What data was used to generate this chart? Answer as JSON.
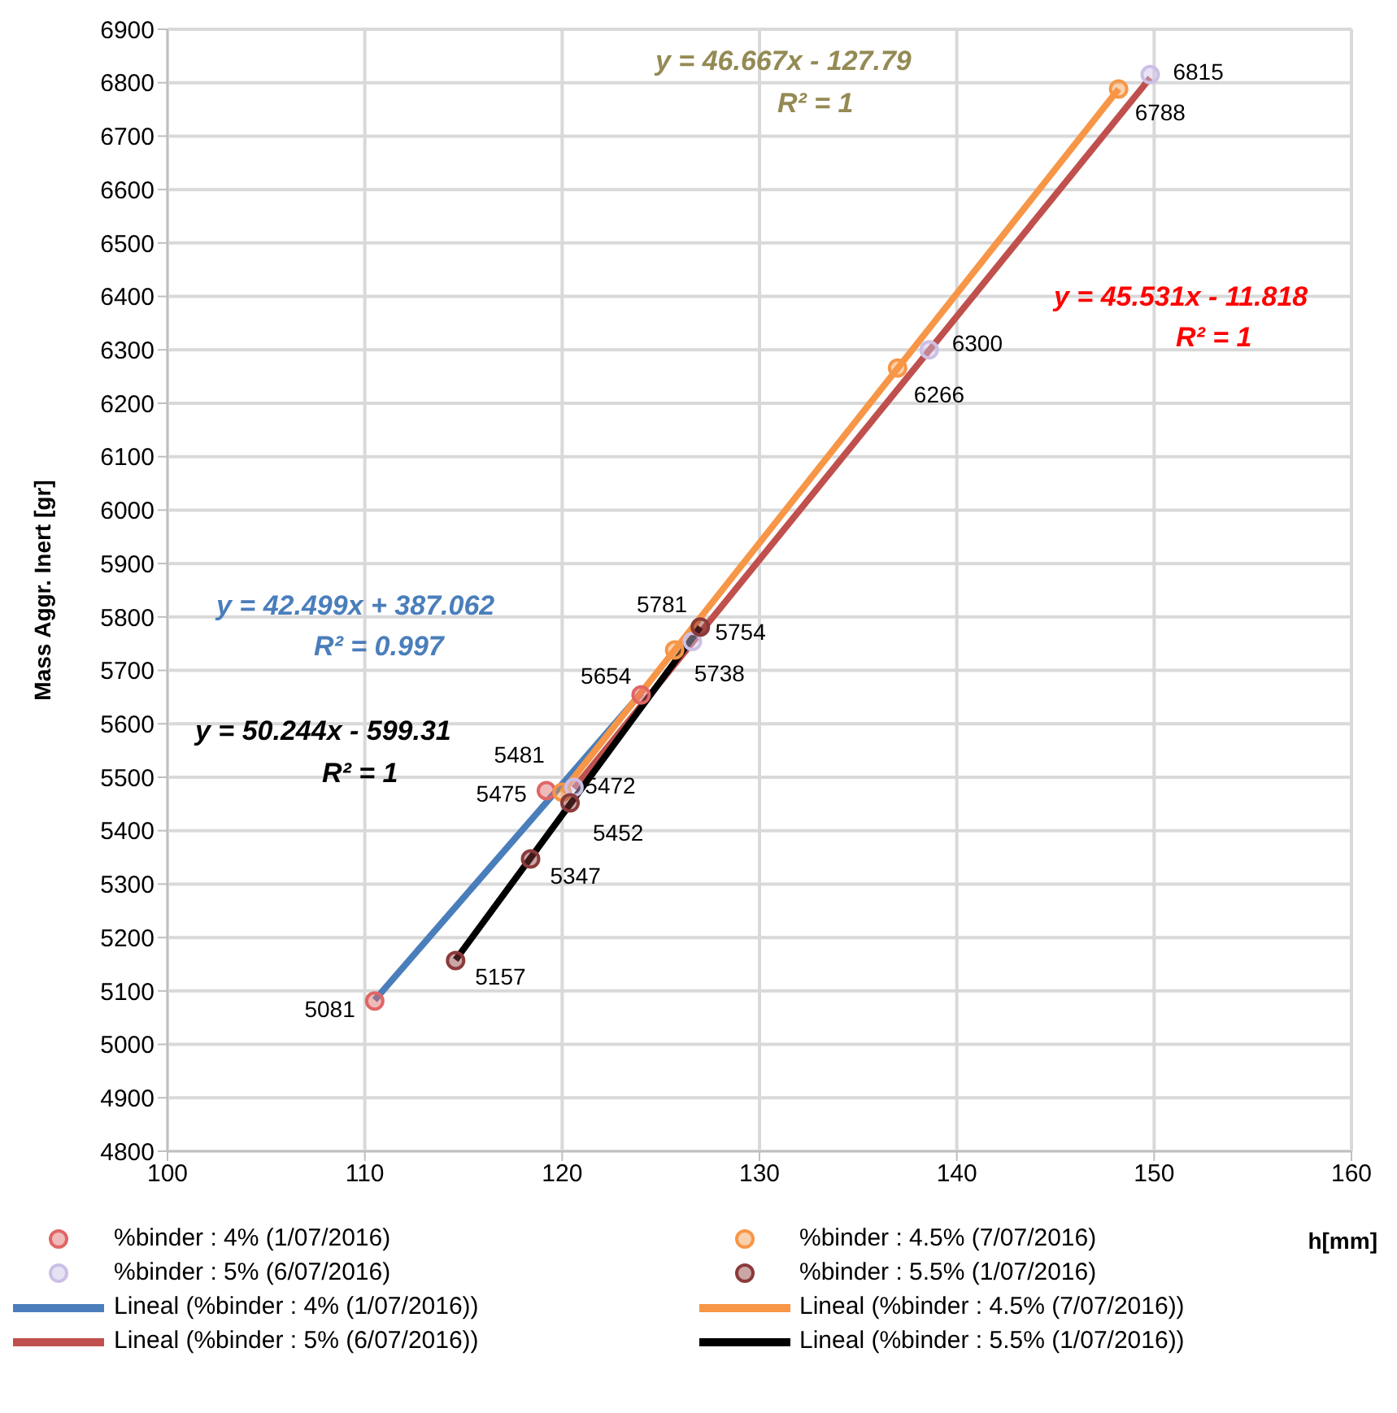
{
  "chart_data": {
    "type": "scatter",
    "xlabel": "h[mm]",
    "ylabel": "Mass Aggr. Inert [gr]",
    "xlim": [
      100,
      160
    ],
    "xticks": [
      100,
      110,
      120,
      130,
      140,
      150,
      160
    ],
    "ylim": [
      4800,
      6900
    ],
    "yticks": [
      4800,
      4900,
      5000,
      5100,
      5200,
      5300,
      5400,
      5500,
      5600,
      5700,
      5800,
      5900,
      6000,
      6100,
      6200,
      6300,
      6400,
      6500,
      6600,
      6700,
      6800,
      6900
    ],
    "grid": true,
    "legend": "bottom",
    "marker": "circle",
    "series": [
      {
        "name": "%binder : 4%  (1/07/2016)",
        "color": "#e06666",
        "x": [
          110.5,
          119.2,
          124.0
        ],
        "values": [
          5081,
          5475,
          5654
        ],
        "value_labels": [
          "5081",
          "5475",
          "5654"
        ]
      },
      {
        "name": "%binder : 4.5% (7/07/2016)",
        "color": "#f79646",
        "x": [
          120.0,
          125.7,
          137.0,
          148.2
        ],
        "values": [
          5472,
          5738,
          6266,
          6788
        ],
        "value_labels": [
          "5472",
          "5738",
          "6266",
          "6788"
        ]
      },
      {
        "name": "%binder : 5% (6/07/2016)",
        "color": "#ccc0e6",
        "x": [
          120.6,
          126.6,
          138.6,
          149.8
        ],
        "values": [
          5481,
          5754,
          6300,
          6815
        ],
        "value_labels": [
          "5481",
          "5754",
          "6300",
          "6815"
        ]
      },
      {
        "name": "%binder : 5.5% (1/07/2016)",
        "color": "#8b3a3a",
        "x": [
          114.6,
          118.4,
          120.4,
          127.0
        ],
        "values": [
          5157,
          5347,
          5452,
          5781
        ],
        "value_labels": [
          "5157",
          "5347",
          "5452",
          "5781"
        ]
      },
      {
        "name": "Lineal (%binder : 4%  (1/07/2016))",
        "type": "line",
        "marker": "none",
        "color": "#4a7ebb",
        "x": [
          110.5,
          124.0
        ],
        "values": [
          5083,
          5657
        ]
      },
      {
        "name": "Lineal (%binder : 4.5% (7/07/2016))",
        "type": "line",
        "marker": "none",
        "color": "#f79646",
        "x": [
          120.0,
          148.2
        ],
        "values": [
          5472,
          6788
        ]
      },
      {
        "name": "Lineal (%binder : 5% (6/07/2016))",
        "type": "line",
        "marker": "none",
        "color": "#c0504d",
        "x": [
          120.6,
          149.8
        ],
        "values": [
          5479,
          6809
        ]
      },
      {
        "name": "Lineal (%binder : 5.5% (1/07/2016))",
        "type": "line",
        "marker": "none",
        "color": "#000000",
        "x": [
          114.6,
          127.0
        ],
        "values": [
          5158,
          5781
        ]
      }
    ],
    "annotations": [
      "y = 42.499x + 387.062",
      "R² = 0.997",
      "y = 50.244x - 599.31",
      "R² = 1",
      "y = 46.667x - 127.79",
      "R² = 1",
      "y = 45.531x - 11.818",
      "R² = 1"
    ]
  }
}
